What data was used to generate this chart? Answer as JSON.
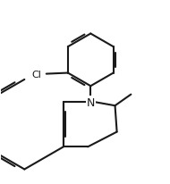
{
  "background_color": "#ffffff",
  "line_color": "#1a1a1a",
  "line_width": 1.5,
  "font_size": 7,
  "figsize": [
    1.9,
    2.07
  ],
  "dpi": 100
}
